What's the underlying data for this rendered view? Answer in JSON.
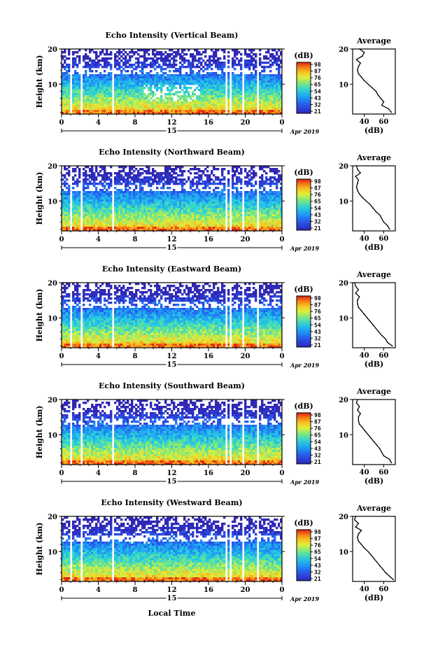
{
  "figure": {
    "xlabel": "Local Time",
    "date_label": "Apr 2019",
    "day_label": "15"
  },
  "chart_data": [
    {
      "type": "heatmap",
      "title": "Echo Intensity (Vertical Beam)",
      "ylabel": "Height (km)",
      "x_ticks": [
        "0",
        "4",
        "8",
        "12",
        "16",
        "20",
        "0"
      ],
      "xlim": [
        0,
        24
      ],
      "y_ticks": [
        "10",
        "20"
      ],
      "ylim": [
        1.5,
        20
      ],
      "colorbar_unit": "(dB)",
      "colorbar_ticks": [
        "98",
        "87",
        "76",
        "65",
        "54",
        "43",
        "32",
        "21"
      ],
      "average": {
        "title": "Average",
        "xlabel": "(dB)",
        "x_ticks": [
          "40",
          "60"
        ],
        "xlim": [
          28,
          72
        ],
        "y_ticks": [
          "10",
          "20"
        ],
        "heights": [
          2,
          3,
          4,
          5,
          6,
          7,
          8,
          9,
          10,
          11,
          12,
          13,
          14,
          15,
          16,
          17,
          18,
          19,
          20
        ],
        "values": [
          68,
          65,
          58,
          60,
          57,
          54,
          52,
          48,
          44,
          40,
          37,
          34,
          33,
          34,
          36,
          32,
          38,
          40,
          35
        ]
      }
    },
    {
      "type": "heatmap",
      "title": "Echo Intensity (Northward Beam)",
      "ylabel": "Height (km)",
      "x_ticks": [
        "0",
        "4",
        "8",
        "12",
        "16",
        "20",
        "0"
      ],
      "xlim": [
        0,
        24
      ],
      "y_ticks": [
        "10",
        "20"
      ],
      "ylim": [
        1.5,
        20
      ],
      "colorbar_unit": "(dB)",
      "colorbar_ticks": [
        "98",
        "87",
        "76",
        "65",
        "54",
        "43",
        "32",
        "21"
      ],
      "average": {
        "title": "Average",
        "xlabel": "(dB)",
        "x_ticks": [
          "40",
          "60"
        ],
        "xlim": [
          28,
          72
        ],
        "y_ticks": [
          "10",
          "20"
        ],
        "heights": [
          2,
          3,
          4,
          5,
          6,
          7,
          8,
          9,
          10,
          11,
          12,
          13,
          14,
          15,
          16,
          17,
          18,
          19,
          20
        ],
        "values": [
          66,
          64,
          60,
          58,
          56,
          52,
          49,
          46,
          42,
          38,
          35,
          33,
          32,
          33,
          34,
          31,
          36,
          33,
          32
        ]
      }
    },
    {
      "type": "heatmap",
      "title": "Echo Intensity (Eastward Beam)",
      "ylabel": "Height (km)",
      "x_ticks": [
        "0",
        "4",
        "8",
        "12",
        "16",
        "20",
        "0"
      ],
      "xlim": [
        0,
        24
      ],
      "y_ticks": [
        "10",
        "20"
      ],
      "ylim": [
        1.5,
        20
      ],
      "colorbar_unit": "(dB)",
      "colorbar_ticks": [
        "98",
        "87",
        "76",
        "65",
        "54",
        "43",
        "32",
        "21"
      ],
      "average": {
        "title": "Average",
        "xlabel": "(dB)",
        "x_ticks": [
          "40",
          "60"
        ],
        "xlim": [
          28,
          72
        ],
        "y_ticks": [
          "10",
          "20"
        ],
        "heights": [
          2,
          3,
          4,
          5,
          6,
          7,
          8,
          9,
          10,
          11,
          12,
          13,
          14,
          15,
          16,
          17,
          18,
          19,
          20
        ],
        "values": [
          69,
          64,
          62,
          58,
          55,
          52,
          49,
          46,
          43,
          40,
          37,
          34,
          33,
          33,
          35,
          31,
          34,
          31,
          30
        ]
      }
    },
    {
      "type": "heatmap",
      "title": "Echo Intensity (Southward Beam)",
      "ylabel": "Height (km)",
      "x_ticks": [
        "0",
        "4",
        "8",
        "12",
        "16",
        "20",
        "0"
      ],
      "xlim": [
        0,
        24
      ],
      "y_ticks": [
        "10",
        "20"
      ],
      "ylim": [
        1.5,
        20
      ],
      "colorbar_unit": "(dB)",
      "colorbar_ticks": [
        "98",
        "87",
        "76",
        "65",
        "54",
        "43",
        "32",
        "21"
      ],
      "average": {
        "title": "Average",
        "xlabel": "(dB)",
        "x_ticks": [
          "40",
          "60"
        ],
        "xlim": [
          28,
          72
        ],
        "y_ticks": [
          "10",
          "20"
        ],
        "heights": [
          2,
          3,
          4,
          5,
          6,
          7,
          8,
          9,
          10,
          11,
          12,
          13,
          14,
          15,
          16,
          17,
          18,
          19,
          20
        ],
        "values": [
          68,
          66,
          60,
          58,
          56,
          53,
          50,
          47,
          44,
          41,
          38,
          35,
          34,
          34,
          36,
          33,
          35,
          32,
          33
        ]
      }
    },
    {
      "type": "heatmap",
      "title": "Echo Intensity (Westward Beam)",
      "ylabel": "Height (km)",
      "x_ticks": [
        "0",
        "4",
        "8",
        "12",
        "16",
        "20",
        "0"
      ],
      "xlim": [
        0,
        24
      ],
      "y_ticks": [
        "10",
        "20"
      ],
      "ylim": [
        1.5,
        20
      ],
      "colorbar_unit": "(dB)",
      "colorbar_ticks": [
        "98",
        "87",
        "76",
        "65",
        "54",
        "43",
        "32",
        "21"
      ],
      "average": {
        "title": "Average",
        "xlabel": "(dB)",
        "x_ticks": [
          "40",
          "60"
        ],
        "xlim": [
          28,
          72
        ],
        "y_ticks": [
          "10",
          "20"
        ],
        "heights": [
          2,
          3,
          4,
          5,
          6,
          7,
          8,
          9,
          10,
          11,
          12,
          13,
          14,
          15,
          16,
          17,
          18,
          19,
          20
        ],
        "values": [
          70,
          66,
          62,
          59,
          56,
          53,
          50,
          47,
          44,
          40,
          37,
          34,
          33,
          34,
          37,
          31,
          34,
          30,
          31
        ]
      }
    }
  ]
}
